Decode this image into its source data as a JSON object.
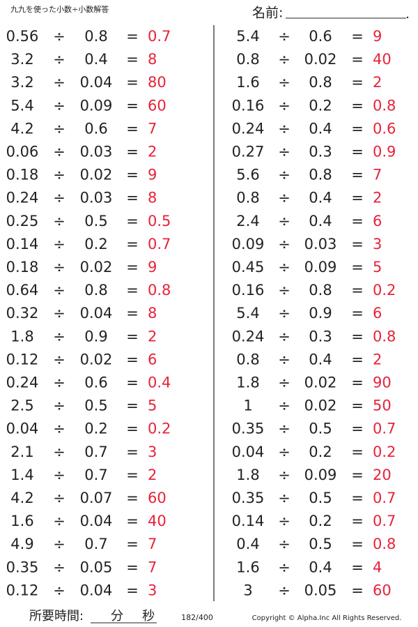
{
  "header": {
    "title": "九九を使った小数÷小数解答",
    "name_label": "名前:"
  },
  "operator": "÷",
  "equals": "=",
  "columns": [
    {
      "rows": [
        [
          "0.56",
          "0.8",
          "0.7"
        ],
        [
          "3.2",
          "0.4",
          "8"
        ],
        [
          "3.2",
          "0.04",
          "80"
        ],
        [
          "5.4",
          "0.09",
          "60"
        ],
        [
          "4.2",
          "0.6",
          "7"
        ],
        [
          "0.06",
          "0.03",
          "2"
        ],
        [
          "0.18",
          "0.02",
          "9"
        ],
        [
          "0.24",
          "0.03",
          "8"
        ],
        [
          "0.25",
          "0.5",
          "0.5"
        ],
        [
          "0.14",
          "0.2",
          "0.7"
        ],
        [
          "0.18",
          "0.02",
          "9"
        ],
        [
          "0.64",
          "0.8",
          "0.8"
        ],
        [
          "0.32",
          "0.04",
          "8"
        ],
        [
          "1.8",
          "0.9",
          "2"
        ],
        [
          "0.12",
          "0.02",
          "6"
        ],
        [
          "0.24",
          "0.6",
          "0.4"
        ],
        [
          "2.5",
          "0.5",
          "5"
        ],
        [
          "0.04",
          "0.2",
          "0.2"
        ],
        [
          "2.1",
          "0.7",
          "3"
        ],
        [
          "1.4",
          "0.7",
          "2"
        ],
        [
          "4.2",
          "0.07",
          "60"
        ],
        [
          "1.6",
          "0.04",
          "40"
        ],
        [
          "4.9",
          "0.7",
          "7"
        ],
        [
          "0.35",
          "0.05",
          "7"
        ],
        [
          "0.12",
          "0.04",
          "3"
        ]
      ]
    },
    {
      "rows": [
        [
          "5.4",
          "0.6",
          "9"
        ],
        [
          "0.8",
          "0.02",
          "40"
        ],
        [
          "1.6",
          "0.8",
          "2"
        ],
        [
          "0.16",
          "0.2",
          "0.8"
        ],
        [
          "0.24",
          "0.4",
          "0.6"
        ],
        [
          "0.27",
          "0.3",
          "0.9"
        ],
        [
          "5.6",
          "0.8",
          "7"
        ],
        [
          "0.8",
          "0.4",
          "2"
        ],
        [
          "2.4",
          "0.4",
          "6"
        ],
        [
          "0.09",
          "0.03",
          "3"
        ],
        [
          "0.45",
          "0.09",
          "5"
        ],
        [
          "0.16",
          "0.8",
          "0.2"
        ],
        [
          "5.4",
          "0.9",
          "6"
        ],
        [
          "0.24",
          "0.3",
          "0.8"
        ],
        [
          "0.8",
          "0.4",
          "2"
        ],
        [
          "1.8",
          "0.02",
          "90"
        ],
        [
          "1",
          "0.02",
          "50"
        ],
        [
          "0.35",
          "0.5",
          "0.7"
        ],
        [
          "0.04",
          "0.2",
          "0.2"
        ],
        [
          "1.8",
          "0.09",
          "20"
        ],
        [
          "0.35",
          "0.5",
          "0.7"
        ],
        [
          "0.14",
          "0.2",
          "0.7"
        ],
        [
          "0.4",
          "0.5",
          "0.8"
        ],
        [
          "1.6",
          "0.4",
          "4"
        ],
        [
          "3",
          "0.05",
          "60"
        ]
      ]
    }
  ],
  "footer": {
    "time_label": "所要時間:",
    "minutes": "分",
    "seconds": "秒",
    "page": "182/400",
    "copyright": "Copyright © Alpha.Inc All Rights Reserved."
  }
}
